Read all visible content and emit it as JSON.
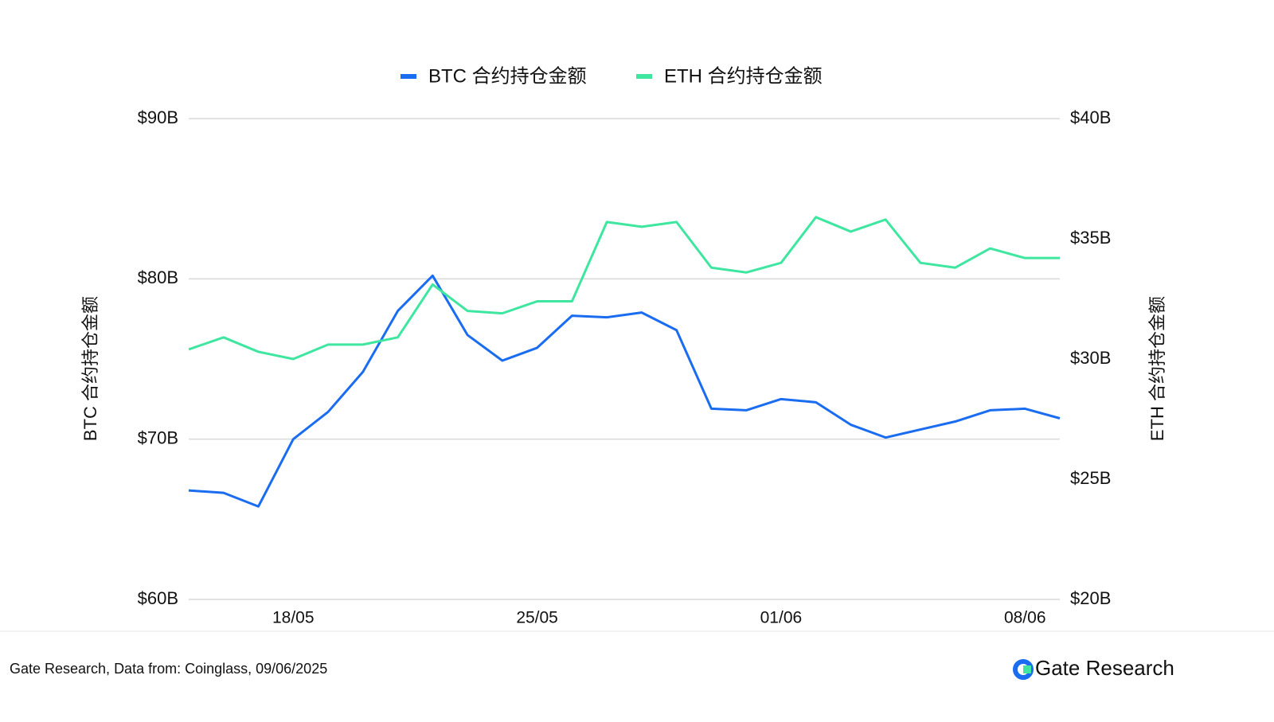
{
  "chart_data": {
    "type": "line",
    "categories": [
      null,
      null,
      null,
      "18/05",
      null,
      null,
      null,
      null,
      null,
      null,
      "25/05",
      null,
      null,
      null,
      null,
      null,
      null,
      "01/06",
      null,
      null,
      null,
      null,
      null,
      null,
      "08/06",
      null
    ],
    "series": [
      {
        "name": "BTC 合约持仓金额",
        "color": "#1a6cf0",
        "axis": "y",
        "values": [
          66.8,
          66.65,
          65.8,
          70.0,
          71.7,
          74.2,
          78.0,
          80.2,
          76.5,
          74.9,
          75.7,
          77.7,
          77.6,
          77.9,
          76.8,
          71.9,
          71.8,
          72.5,
          72.3,
          70.9,
          70.1,
          70.6,
          71.1,
          71.8,
          71.9,
          71.3
        ]
      },
      {
        "name": "ETH 合约持仓金额",
        "color": "#3ee6a0",
        "axis": "y2",
        "values": [
          30.4,
          30.9,
          30.3,
          30.0,
          30.6,
          30.6,
          30.9,
          33.1,
          32.0,
          31.9,
          32.4,
          32.4,
          35.7,
          35.5,
          35.7,
          33.8,
          33.6,
          34.0,
          35.9,
          35.3,
          35.8,
          34.0,
          33.8,
          34.6,
          34.2,
          34.2
        ]
      }
    ],
    "ylabel": "BTC 合约持仓金额",
    "y2label": "ETH 合约持仓金额",
    "ylim": [
      60,
      90
    ],
    "yticks": [
      {
        "value": 60,
        "label": "$60B"
      },
      {
        "value": 70,
        "label": "$70B"
      },
      {
        "value": 80,
        "label": "$80B"
      },
      {
        "value": 90,
        "label": "$90B"
      }
    ],
    "y2lim": [
      20,
      40
    ],
    "y2ticks": [
      {
        "value": 20,
        "label": "$20B"
      },
      {
        "value": 25,
        "label": "$25B"
      },
      {
        "value": 30,
        "label": "$30B"
      },
      {
        "value": 35,
        "label": "$35B"
      },
      {
        "value": 40,
        "label": "$40B"
      }
    ],
    "grid": true,
    "legend": "top"
  },
  "footer": {
    "source": "Gate Research, Data from: Coinglass, 09/06/2025",
    "brand": "Gate Research"
  }
}
